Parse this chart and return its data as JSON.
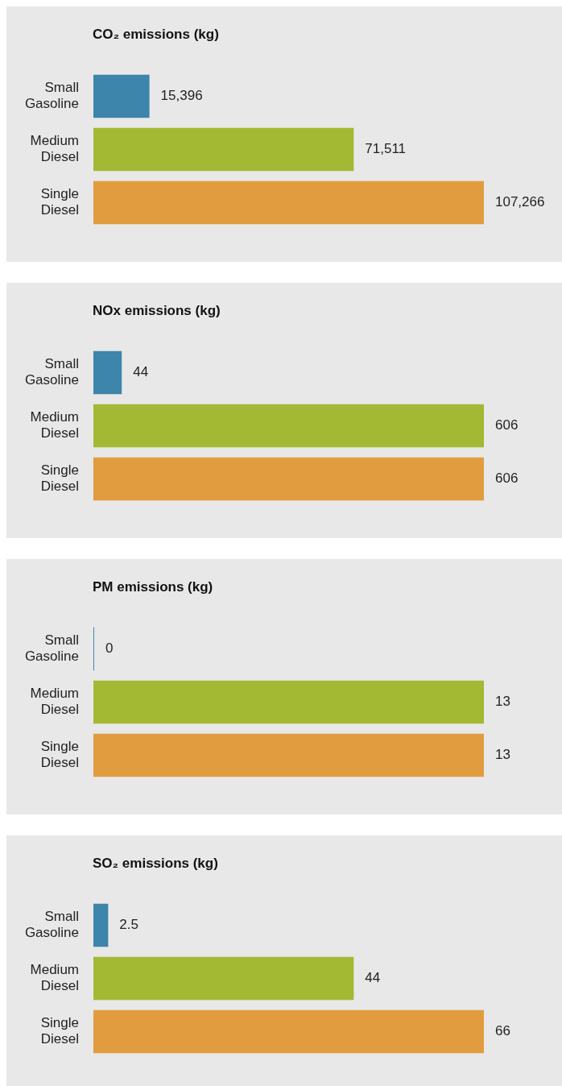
{
  "chart_data": [
    {
      "type": "bar",
      "orientation": "horizontal",
      "title": "CO₂ emissions (kg)",
      "categories": [
        "Small Gasoline",
        "Medium Diesel",
        "Single Diesel"
      ],
      "values": [
        15396,
        71511,
        107266
      ],
      "colors": [
        "#3d85aa",
        "#a3b934",
        "#e29c40"
      ],
      "value_labels": [
        "15,396",
        "71,511",
        "107,266"
      ]
    },
    {
      "type": "bar",
      "orientation": "horizontal",
      "title": "NOx emissions (kg)",
      "categories": [
        "Small Gasoline",
        "Medium Diesel",
        "Single Diesel"
      ],
      "values": [
        44,
        606,
        606
      ],
      "colors": [
        "#3d85aa",
        "#a3b934",
        "#e29c40"
      ],
      "value_labels": [
        "44",
        "606",
        "606"
      ]
    },
    {
      "type": "bar",
      "orientation": "horizontal",
      "title": "PM emissions (kg)",
      "categories": [
        "Small Gasoline",
        "Medium Diesel",
        "Single Diesel"
      ],
      "values": [
        0,
        13,
        13
      ],
      "colors": [
        "#3d85aa",
        "#a3b934",
        "#e29c40"
      ],
      "value_labels": [
        "0",
        "13",
        "13"
      ]
    },
    {
      "type": "bar",
      "orientation": "horizontal",
      "title": "SO₂ emissions (kg)",
      "categories": [
        "Small Gasoline",
        "Medium Diesel",
        "Single Diesel"
      ],
      "values": [
        2.5,
        44,
        66
      ],
      "colors": [
        "#3d85aa",
        "#a3b934",
        "#e29c40"
      ],
      "value_labels": [
        "2.5",
        "44",
        "66"
      ]
    }
  ]
}
